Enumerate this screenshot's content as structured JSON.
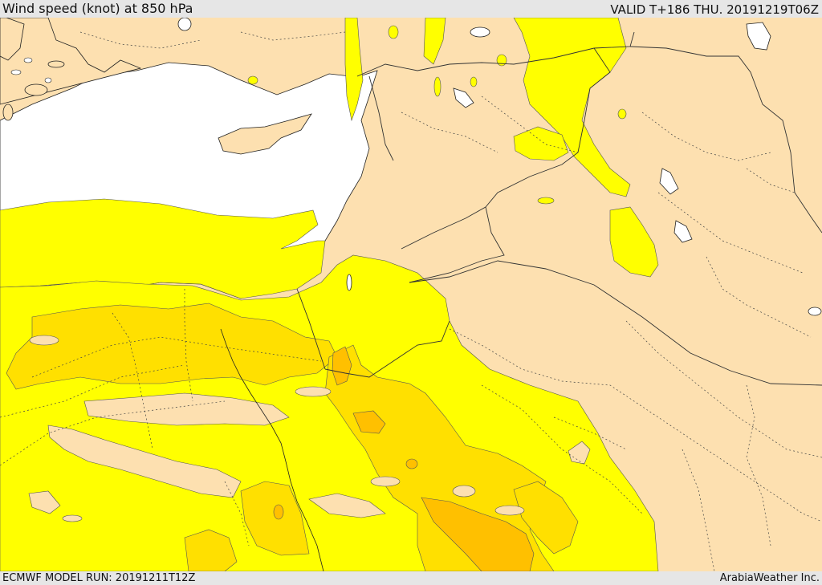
{
  "header": {
    "title": "Wind speed (knot) at 850 hPa",
    "valid": "VALID T+186 THU. 20191219T06Z"
  },
  "footer": {
    "model_run": "ECMWF MODEL RUN: 20191211T12Z",
    "credit": "ArabiaWeather Inc."
  },
  "colors": {
    "land": "#fde0b0",
    "sea": "#ffffff",
    "band_light_yellow": "#ffff00",
    "band_yellow": "#ffe000",
    "band_orange": "#ffc000",
    "border": "#333333"
  }
}
